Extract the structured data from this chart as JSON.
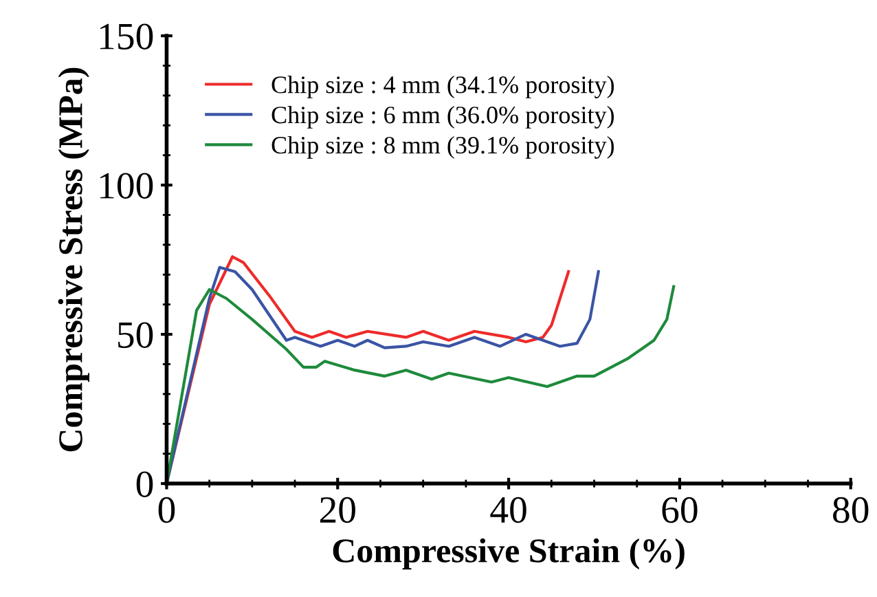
{
  "chart_data": {
    "type": "line",
    "xlabel": "Compressive Strain (%)",
    "ylabel": "Compressive Stress (MPa)",
    "xlim": [
      0,
      80
    ],
    "ylim": [
      0,
      150
    ],
    "xticks": [
      0,
      20,
      40,
      60,
      80
    ],
    "yticks": [
      0,
      50,
      100,
      150
    ],
    "grid": false,
    "legend": "top left",
    "marker": "none",
    "line_style": "solid",
    "series": [
      {
        "name": "Chip size : 4 mm (34.1% porosity)",
        "color": "#ee2a2a",
        "x": [
          0,
          5,
          7.7,
          9,
          12,
          15,
          17,
          19,
          21,
          23.5,
          28,
          30,
          33,
          36,
          40,
          42,
          44,
          45,
          47
        ],
        "values": [
          0,
          60,
          76,
          74,
          63,
          51,
          49,
          51,
          49,
          51,
          49,
          51,
          48,
          51,
          49,
          47.5,
          49,
          53,
          71
        ]
      },
      {
        "name": "Chip size : 6 mm (36.0% porosity)",
        "color": "#3a54a4",
        "x": [
          0,
          5,
          6.2,
          8,
          10,
          14,
          15,
          18,
          20,
          22,
          23.5,
          25.5,
          28,
          30,
          33,
          36,
          39,
          42,
          46,
          48,
          49.5,
          50.5
        ],
        "values": [
          0,
          62,
          72.4,
          71,
          65,
          48,
          49,
          46,
          48,
          46,
          48,
          45.5,
          46,
          47.5,
          46,
          49,
          46,
          50,
          46,
          47,
          55,
          71
        ]
      },
      {
        "name": "Chip size : 8 mm (39.1% porosity)",
        "color": "#1e8a3c",
        "x": [
          0,
          3.5,
          5,
          7,
          10,
          14,
          16,
          17.5,
          18.5,
          22,
          25.5,
          28,
          31,
          33,
          38,
          40,
          44.5,
          48,
          50,
          54,
          57,
          58.5,
          59.3
        ],
        "values": [
          0,
          58,
          65,
          62,
          55,
          45,
          39,
          39,
          41,
          38,
          36,
          38,
          35,
          37,
          34,
          35.5,
          32.5,
          36,
          36,
          42,
          48,
          55,
          66
        ]
      }
    ]
  }
}
